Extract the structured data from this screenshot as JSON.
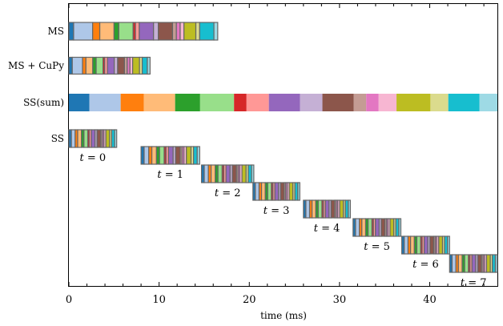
{
  "chart_data": {
    "type": "gantt",
    "xlabel": "time (ms)",
    "xlim": [
      0,
      47.5
    ],
    "xticks": [
      0,
      10,
      20,
      30,
      40
    ],
    "palette": [
      "#1f77b4",
      "#aec7e8",
      "#ff7f0e",
      "#ffbb78",
      "#2ca02c",
      "#98df8a",
      "#d62728",
      "#ff9896",
      "#9467bd",
      "#c5b0d5",
      "#8c564b",
      "#c49c94",
      "#e377c2",
      "#f7b6d2",
      "#bcbd22",
      "#dbdb8d",
      "#17becf",
      "#9edae5"
    ],
    "rows": [
      {
        "label": "MS",
        "start": 0,
        "end": 16.5,
        "boxed": true
      },
      {
        "label": "MS + CuPy",
        "start": 0,
        "end": 9.0,
        "boxed": true
      },
      {
        "label": "SS(sum)",
        "start": 0,
        "end": 47.5,
        "boxed": false
      },
      {
        "label": "SS",
        "start": 0,
        "end": 5.3,
        "boxed": true,
        "sub_label": "t = 0"
      },
      {
        "label": "",
        "start": 8.0,
        "end": 14.5,
        "boxed": true,
        "sub_label": "t = 1"
      },
      {
        "label": "",
        "start": 14.7,
        "end": 20.5,
        "boxed": true,
        "sub_label": "t = 2"
      },
      {
        "label": "",
        "start": 20.4,
        "end": 25.6,
        "boxed": true,
        "sub_label": "t = 3"
      },
      {
        "label": "",
        "start": 26.0,
        "end": 31.2,
        "boxed": true,
        "sub_label": "t = 4"
      },
      {
        "label": "",
        "start": 31.5,
        "end": 36.8,
        "boxed": true,
        "sub_label": "t = 5"
      },
      {
        "label": "",
        "start": 36.9,
        "end": 42.2,
        "boxed": true,
        "sub_label": "t = 6"
      },
      {
        "label": "",
        "start": 42.2,
        "end": 47.5,
        "boxed": true,
        "sub_label": "t = 7"
      }
    ],
    "segment_weights": [
      [
        1,
        4,
        1.5,
        3,
        1,
        3,
        0.5,
        0.8,
        3,
        1,
        3,
        0.8,
        0.8,
        0.8,
        2.5,
        0.8,
        3,
        0.8
      ],
      [
        1,
        3,
        1,
        2,
        1,
        2,
        0.5,
        0.8,
        2,
        1,
        2,
        0.8,
        0.8,
        0.8,
        2,
        0.8,
        1.5,
        0.8
      ],
      [
        2.3,
        3.5,
        2.6,
        3.5,
        2.8,
        3.8,
        1.4,
        2.5,
        3.5,
        2.5,
        3.5,
        1.4,
        1.4,
        2.0,
        3.8,
        2.0,
        3.5,
        2.0
      ],
      [
        1,
        1.5,
        1,
        1.5,
        1,
        1.5,
        0.6,
        0.8,
        1.5,
        0.8,
        1.5,
        0.6,
        0.6,
        0.8,
        1.5,
        0.8,
        1.2,
        0.8
      ]
    ]
  }
}
